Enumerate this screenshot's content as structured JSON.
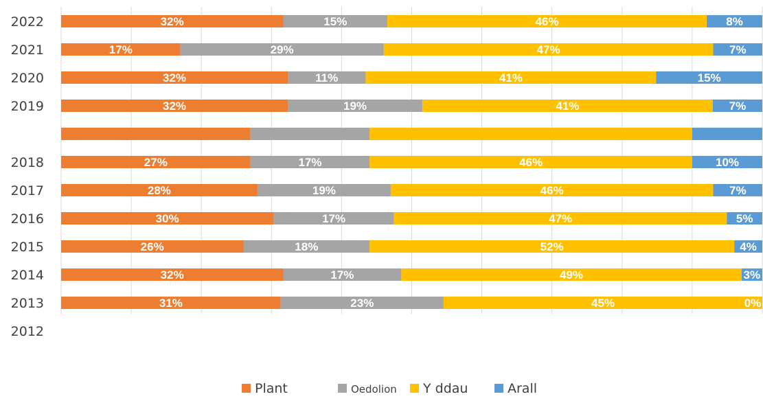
{
  "chart_data": {
    "type": "bar",
    "orientation": "horizontal",
    "stacked": true,
    "title": "",
    "categories": [
      "2022",
      "2021",
      "2020",
      "2019",
      "",
      "2018",
      "2017",
      "2016",
      "2015",
      "2014",
      "2013"
    ],
    "extra_axis_labels": [
      "2012"
    ],
    "series": [
      {
        "name": "Plant",
        "color": "#ED7D31",
        "values": [
          32,
          17,
          32,
          32,
          27,
          27,
          28,
          30,
          26,
          32,
          31
        ],
        "labels": [
          "32%",
          "17%",
          "32%",
          "32%",
          "",
          "27%",
          "28%",
          "30%",
          "26%",
          "32%",
          "31%"
        ]
      },
      {
        "name": "Oedolion",
        "color": "#A5A5A5",
        "values": [
          15,
          29,
          11,
          19,
          17,
          17,
          19,
          17,
          18,
          17,
          23
        ],
        "labels": [
          "15%",
          "29%",
          "11%",
          "19%",
          "",
          "17%",
          "19%",
          "17%",
          "18%",
          "17%",
          "23%"
        ]
      },
      {
        "name": "Y ddau",
        "color": "#FFC000",
        "values": [
          46,
          47,
          41,
          41,
          46,
          46,
          46,
          47,
          52,
          49,
          45
        ],
        "labels": [
          "46%",
          "47%",
          "41%",
          "41%",
          "",
          "46%",
          "46%",
          "47%",
          "52%",
          "49%",
          "45%"
        ]
      },
      {
        "name": "Arall",
        "color": "#5B9BD5",
        "values": [
          8,
          7,
          15,
          7,
          10,
          10,
          7,
          5,
          4,
          3,
          0
        ],
        "labels": [
          "8%",
          "7%",
          "15%",
          "7%",
          "",
          "10%",
          "7%",
          "5%",
          "4%",
          "3%",
          "0%"
        ]
      }
    ],
    "xlim": [
      0,
      100
    ],
    "grid": true,
    "legend_position": "bottom"
  }
}
